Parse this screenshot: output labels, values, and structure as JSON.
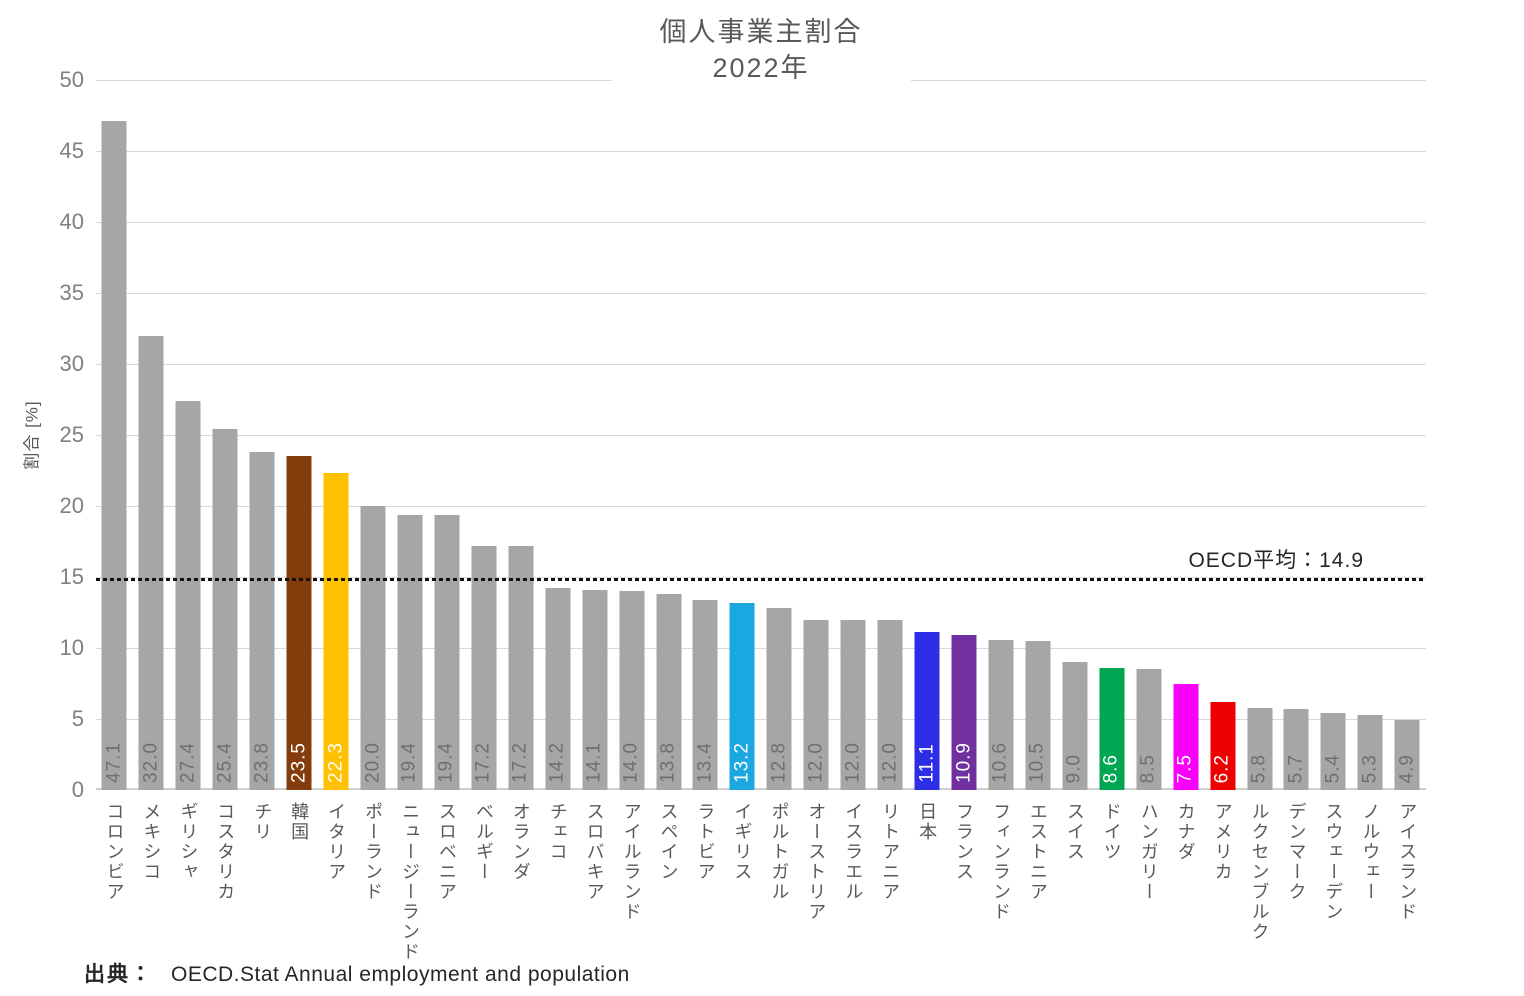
{
  "title": {
    "line1": "個人事業主割合",
    "line2": "2022年"
  },
  "y_axis": {
    "label": "割合 [%]",
    "ticks": [
      0,
      5,
      10,
      15,
      20,
      25,
      30,
      35,
      40,
      45,
      50
    ]
  },
  "reference_line": {
    "label": "OECD平均：14.9",
    "value": 14.9
  },
  "source": {
    "prefix": "出典：",
    "text": "OECD.Stat Annual employment and population"
  },
  "colors": {
    "default_bar": "#a6a6a6",
    "value_label_on_gray": "#6f6f6f",
    "value_label_on_color": "#ffffff",
    "gridline": "#d9d9d9",
    "title_text": "#595959",
    "tick_text": "#808080",
    "highlight_korea": "#843c0c",
    "highlight_italy": "#ffc000",
    "highlight_uk": "#1ba7e0",
    "highlight_japan": "#2d2de6",
    "highlight_france": "#7030a0",
    "highlight_germany": "#00a651",
    "highlight_canada": "#fa00fa",
    "highlight_usa": "#ee0000"
  },
  "chart_data": {
    "type": "bar",
    "title": "個人事業主割合 2022年",
    "xlabel": "",
    "ylabel": "割合 [%]",
    "ylim": [
      0,
      50
    ],
    "grid": true,
    "legend": false,
    "reference_line": {
      "label": "OECD平均：14.9",
      "value": 14.9
    },
    "categories": [
      "コロンビア",
      "メキシコ",
      "ギリシャ",
      "コスタリカ",
      "チリ",
      "韓国",
      "イタリア",
      "ポーランド",
      "ニュージーランド",
      "スロベニア",
      "ベルギー",
      "オランダ",
      "チェコ",
      "スロバキア",
      "アイルランド",
      "スペイン",
      "ラトビア",
      "イギリス",
      "ポルトガル",
      "オーストリア",
      "イスラエル",
      "リトアニア",
      "日本",
      "フランス",
      "フィンランド",
      "エストニア",
      "スイス",
      "ドイツ",
      "ハンガリー",
      "カナダ",
      "アメリカ",
      "ルクセンブルク",
      "デンマーク",
      "スウェーデン",
      "ノルウェー",
      "アイスランド"
    ],
    "values": [
      47.1,
      32.0,
      27.4,
      25.4,
      23.8,
      23.5,
      22.3,
      20.0,
      19.4,
      19.4,
      17.2,
      17.2,
      14.2,
      14.1,
      14.0,
      13.8,
      13.4,
      13.2,
      12.8,
      12.0,
      12.0,
      12.0,
      11.1,
      10.9,
      10.6,
      10.5,
      9.0,
      8.6,
      8.5,
      7.5,
      6.2,
      5.8,
      5.7,
      5.4,
      5.3,
      4.9
    ],
    "value_labels": [
      "47.1",
      "32.0",
      "27.4",
      "25.4",
      "23.8",
      "23.5",
      "22.3",
      "20.0",
      "19.4",
      "19.4",
      "17.2",
      "17.2",
      "14.2",
      "14.1",
      "14.0",
      "13.8",
      "13.4",
      "13.2",
      "12.8",
      "12.0",
      "12.0",
      "12.0",
      "11.1",
      "10.9",
      "10.6",
      "10.5",
      "9.0",
      "8.6",
      "8.5",
      "7.5",
      "6.2",
      "5.8",
      "5.7",
      "5.4",
      "5.3",
      "4.9"
    ],
    "bar_colors": [
      null,
      null,
      null,
      null,
      null,
      "#843c0c",
      "#ffc000",
      null,
      null,
      null,
      null,
      null,
      null,
      null,
      null,
      null,
      null,
      "#1ba7e0",
      null,
      null,
      null,
      null,
      "#2d2de6",
      "#7030a0",
      null,
      null,
      null,
      "#00a651",
      null,
      "#fa00fa",
      "#ee0000",
      null,
      null,
      null,
      null,
      null
    ]
  }
}
